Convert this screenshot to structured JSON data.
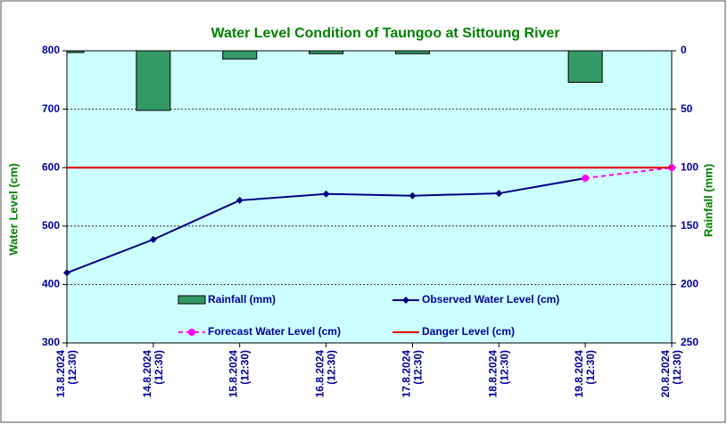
{
  "chart_data": {
    "type": "line",
    "title": "Water Level Condition of Taungoo at  Sittoung River",
    "ylabel": "Water Level (cm)",
    "y2label": "Rainfall (mm)",
    "categories": [
      "13.8.2024 (12:30)",
      "14.8.2024 (12:30)",
      "15.8.2024 (12:30)",
      "16.8.2024 (12:30)",
      "17.8.2024 (12:30)",
      "18.8.2024 (12:30)",
      "19.8.2024 (12:30)",
      "20.8.2024 (12:30)"
    ],
    "series": [
      {
        "name": "Rainfall (mm)",
        "type": "bar",
        "axis": "y2",
        "color": "#339966",
        "values": [
          1.5,
          51,
          7,
          2.5,
          2.5,
          0,
          27,
          0
        ]
      },
      {
        "name": "Observed Water Level (cm)",
        "type": "line",
        "color": "#000080",
        "marker": "diamond",
        "values": [
          420,
          477,
          544,
          555,
          552,
          556,
          582,
          null
        ]
      },
      {
        "name": "Forecast Water Level (cm)",
        "type": "line",
        "color": "#ff00ff",
        "marker": "circle",
        "dashed": true,
        "values": [
          null,
          null,
          null,
          null,
          null,
          null,
          582,
          600
        ]
      },
      {
        "name": "Danger Level (cm)",
        "type": "line",
        "color": "#e00000",
        "values": [
          600,
          600,
          600,
          600,
          600,
          600,
          600,
          600
        ]
      }
    ],
    "ylim": [
      300,
      800
    ],
    "yticks": [
      300,
      400,
      500,
      600,
      700,
      800
    ],
    "y2lim": [
      0,
      250
    ],
    "y2ticks": [
      0,
      50,
      100,
      150,
      200,
      250
    ],
    "y2_reversed": true,
    "grid": true
  }
}
